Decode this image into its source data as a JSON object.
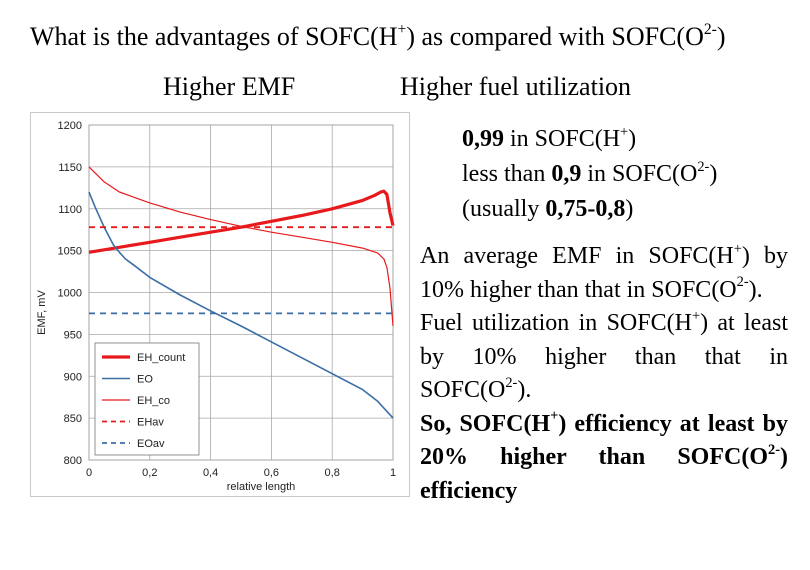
{
  "slide": {
    "title_prefix": "What is the advantages of SOFC(H",
    "title_sup1": "+",
    "title_mid": ") as compared with SOFC(O",
    "title_sup2": "2-",
    "title_suffix": ")",
    "head_left": "Higher EMF",
    "head_right": "Higher fuel utilization"
  },
  "utilization": {
    "line1_value": "0,99",
    "line1_text": " in SOFC(H",
    "line1_sup": "+",
    "line1_end": ")",
    "line2_text": "less than ",
    "line2_value": "0,9",
    "line2_mid": " in SOFC(O",
    "line2_sup": "2-",
    "line2_end": ")",
    "line3_open": "(usually ",
    "line3_value": "0,75-0,8",
    "line3_close": ")"
  },
  "paragraph1": {
    "a": "An average EMF in SOFC(H",
    "sup_a": "+",
    "b": ") by 10% higher than that in SOFC(O",
    "sup_b": "2-",
    "c": ")."
  },
  "paragraph2": {
    "a": "Fuel utilization in SOFC(H",
    "sup_a": "+",
    "b": ") at least by 10% higher than that in SOFC(O",
    "sup_b": "2-",
    "c": ")."
  },
  "paragraph3": {
    "a": "So, SOFC(H",
    "sup_a": "+",
    "b": ") efficiency at least by 20% higher than SOFC(O",
    "sup_b": "2-",
    "c": ") efficiency"
  },
  "chart_data": {
    "type": "line",
    "xlabel": "relative length",
    "ylabel": "EMF, mV",
    "xlim": [
      0,
      1
    ],
    "ylim": [
      800,
      1200
    ],
    "x_ticks": [
      "0",
      "0,2",
      "0,4",
      "0,6",
      "0,8",
      "1"
    ],
    "y_ticks": [
      "800",
      "850",
      "900",
      "950",
      "1000",
      "1050",
      "1100",
      "1150",
      "1200"
    ],
    "grid": true,
    "legend_position": "bottom-left",
    "series": [
      {
        "name": "EH_count",
        "color": "#e8191c",
        "style": "solid-thick",
        "x": [
          0,
          0.1,
          0.2,
          0.3,
          0.4,
          0.5,
          0.6,
          0.7,
          0.8,
          0.9,
          0.94,
          0.96,
          0.97,
          0.98,
          0.99,
          1.0
        ],
        "y": [
          1048,
          1054,
          1060,
          1066,
          1072,
          1078,
          1085,
          1092,
          1100,
          1110,
          1116,
          1120,
          1121,
          1117,
          1095,
          1080
        ]
      },
      {
        "name": "EO",
        "color": "#3a6ea5",
        "style": "solid",
        "x": [
          0,
          0.02,
          0.05,
          0.08,
          0.1,
          0.12,
          0.15,
          0.2,
          0.3,
          0.4,
          0.5,
          0.6,
          0.7,
          0.8,
          0.9,
          0.95,
          1.0
        ],
        "y": [
          1120,
          1102,
          1078,
          1057,
          1048,
          1040,
          1032,
          1018,
          997,
          978,
          960,
          941,
          922,
          903,
          884,
          870,
          850
        ]
      },
      {
        "name": "EH_co",
        "color": "#e8191c",
        "style": "solid-thin",
        "x": [
          0,
          0.05,
          0.1,
          0.2,
          0.3,
          0.4,
          0.5,
          0.6,
          0.7,
          0.8,
          0.9,
          0.95,
          0.97,
          0.98,
          0.99,
          1.0
        ],
        "y": [
          1150,
          1132,
          1120,
          1107,
          1096,
          1087,
          1079,
          1072,
          1066,
          1060,
          1053,
          1047,
          1040,
          1030,
          1005,
          960
        ]
      },
      {
        "name": "EHav",
        "color": "#e8191c",
        "style": "dashed",
        "x": [
          0,
          1
        ],
        "y": [
          1078,
          1078
        ]
      },
      {
        "name": "EOav",
        "color": "#3a6ea5",
        "style": "dashed",
        "x": [
          0,
          1
        ],
        "y": [
          975,
          975
        ]
      }
    ]
  }
}
